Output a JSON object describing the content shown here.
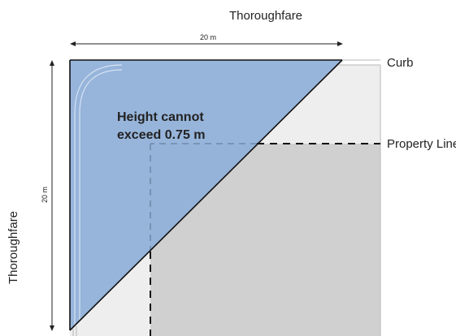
{
  "labels": {
    "top_road": "Thoroughfare",
    "left_road": "Thoroughfare",
    "curb": "Curb",
    "property_line": "Property Line",
    "note_line1": "Height cannot",
    "note_line2": "exceed 0.75 m",
    "width_dimension": "20 m",
    "height_dimension": "20 m"
  },
  "colors": {
    "sight_triangle_fill": "#8fb0d9",
    "lot_fill": "#d0d0d0",
    "sidewalk_fill": "#eeeeee",
    "curb_stroke": "#b8b8b8",
    "outline": "#111111",
    "property_line": "#111111",
    "hidden_property_line": "#6f8aab"
  },
  "icons": {
    "dimension_arrow": "double-headed-arrow"
  }
}
